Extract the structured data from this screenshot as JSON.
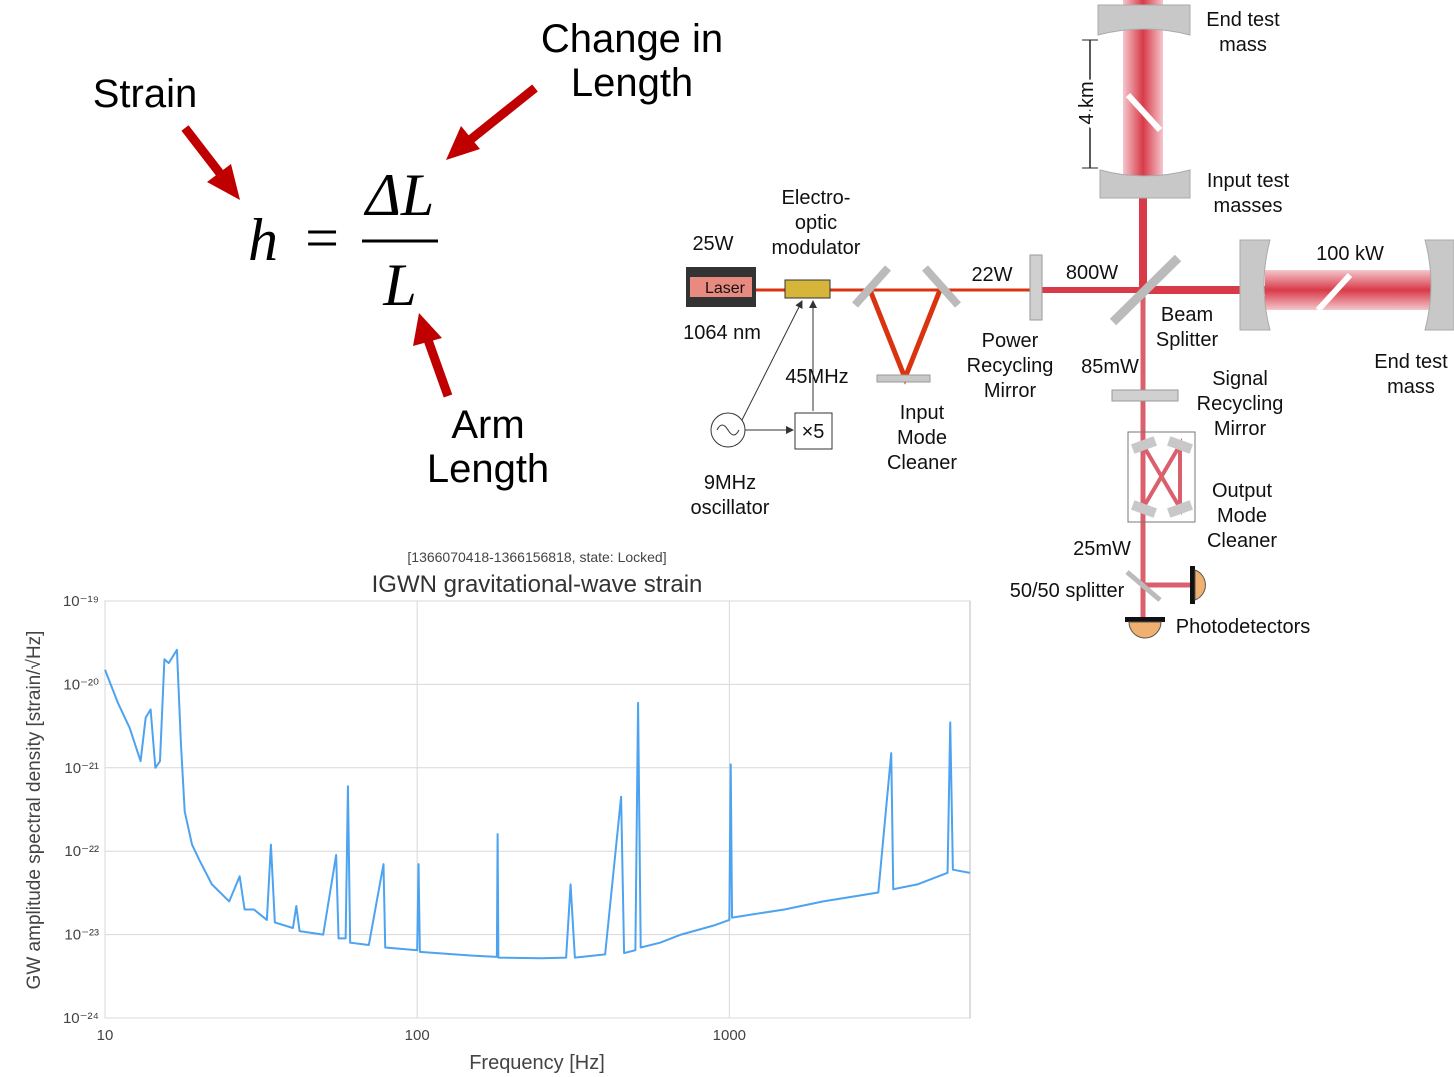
{
  "equation": {
    "lhs": "h",
    "eq": "=",
    "numerator": "ΔL",
    "denominator": "L",
    "labels": {
      "strain": [
        "Strain"
      ],
      "change": [
        "Change in",
        "Length"
      ],
      "arm": [
        "Arm",
        "Length"
      ]
    }
  },
  "diagram": {
    "end_mass_top": [
      "End test",
      "mass"
    ],
    "four_km": [
      "4 km"
    ],
    "input_masses": [
      "Input test",
      "masses"
    ],
    "eom": [
      "Electro-",
      "optic",
      "modulator"
    ],
    "laser_power": [
      "25W"
    ],
    "laser": [
      "Laser"
    ],
    "wavelength": [
      "1064 nm"
    ],
    "mhz45": [
      "45MHz"
    ],
    "x5": [
      "×5"
    ],
    "oscillator": [
      "9MHz",
      "oscillator"
    ],
    "imc": [
      "Input",
      "Mode",
      "Cleaner"
    ],
    "p22": [
      "22W"
    ],
    "p800": [
      "800W"
    ],
    "prm": [
      "Power",
      "Recycling",
      "Mirror"
    ],
    "bs": [
      "Beam",
      "Splitter"
    ],
    "p100k": [
      "100 kW"
    ],
    "end_mass_right": [
      "End test",
      "mass"
    ],
    "p85": [
      "85mW"
    ],
    "srm": [
      "Signal",
      "Recycling",
      "Mirror"
    ],
    "omc": [
      "Output",
      "Mode",
      "Cleaner"
    ],
    "p25": [
      "25mW"
    ],
    "splitter": [
      "50/50 splitter"
    ],
    "pd": [
      "Photodetectors"
    ]
  },
  "chart_data": {
    "type": "line",
    "subtitle": "[1366070418-1366156818, state: Locked]",
    "title": "IGWN gravitational-wave strain",
    "x_label": "Frequency [Hz]",
    "y_label": "GW amplitude spectral density [strain/√Hz]",
    "x_scale": "log",
    "y_scale": "log",
    "grid": true,
    "color": "#4da3f0",
    "xlim": [
      10,
      5900
    ],
    "ylim": [
      1e-24,
      1e-19
    ],
    "xticks": [
      10,
      100,
      1000
    ],
    "yticks": [
      {
        "value": 1e-24,
        "label": "10⁻²⁴"
      },
      {
        "value": 1e-23,
        "label": "10⁻²³"
      },
      {
        "value": 1e-22,
        "label": "10⁻²²"
      },
      {
        "value": 1e-21,
        "label": "10⁻²¹"
      },
      {
        "value": 1e-20,
        "label": "10⁻²⁰"
      },
      {
        "value": 1e-19,
        "label": "10⁻¹⁹"
      }
    ],
    "x": [
      10,
      11,
      12,
      13,
      13.5,
      14,
      14.5,
      15,
      15.5,
      16,
      17,
      17.5,
      18,
      19,
      20,
      22,
      25,
      27,
      28,
      30,
      33,
      34,
      35,
      40,
      41,
      42,
      50,
      55,
      56,
      59,
      60,
      61,
      70,
      78,
      79,
      100,
      101,
      102,
      150,
      180,
      181,
      182,
      250,
      300,
      310,
      320,
      400,
      450,
      460,
      500,
      510,
      520,
      600,
      700,
      900,
      1000,
      1010,
      1020,
      1500,
      2000,
      3000,
      3300,
      3350,
      4000,
      5000,
      5100,
      5200,
      5900
    ],
    "values": [
      1.5e-20,
      6e-21,
      3e-21,
      1.2e-21,
      4e-21,
      5e-21,
      1e-21,
      1.2e-21,
      2e-20,
      1.8e-20,
      2.6e-20,
      2e-21,
      3e-22,
      1.2e-22,
      8e-23,
      4e-23,
      2.5e-23,
      5e-23,
      2e-23,
      2e-23,
      1.5e-23,
      1.2e-22,
      1.4e-23,
      1.2e-23,
      2.2e-23,
      1.1e-23,
      1e-23,
      9e-23,
      9e-24,
      9e-24,
      6e-22,
      8e-24,
      7.5e-24,
      7e-23,
      7e-24,
      6.5e-24,
      7e-23,
      6.2e-24,
      5.6e-24,
      5.4e-24,
      1.6e-22,
      5.3e-24,
      5.2e-24,
      5.3e-24,
      4e-23,
      5.3e-24,
      5.8e-24,
      4.5e-22,
      6e-24,
      6.5e-24,
      6e-21,
      7e-24,
      8e-24,
      1e-23,
      1.3e-23,
      1.5e-23,
      1.1e-21,
      1.6e-23,
      2e-23,
      2.5e-23,
      3.2e-23,
      1.5e-21,
      3.5e-23,
      4e-23,
      5.5e-23,
      3.5e-21,
      6e-23,
      5.5e-23
    ]
  }
}
